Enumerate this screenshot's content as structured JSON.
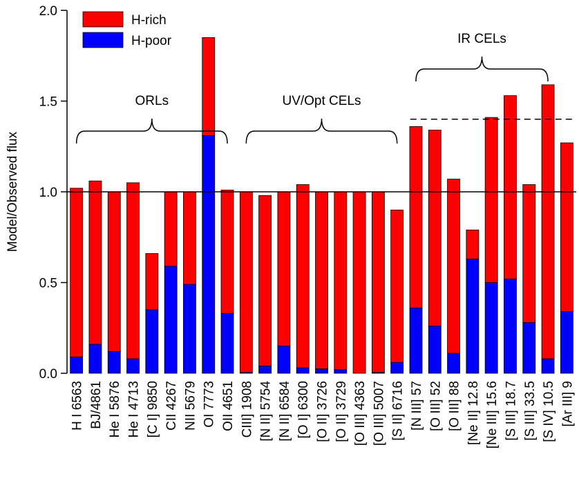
{
  "chart_data": {
    "type": "stacked_bar",
    "y_label": "Model/Observed flux",
    "categories": [
      "H I 6563",
      "BJ/4861",
      "He I 5876",
      "He I 4713",
      "[C I] 9850",
      "CII 4267",
      "NII 5679",
      "OI 7773",
      "OII 4651",
      "CIII] 1908",
      "[N II] 5754",
      "[N II] 6584",
      "[O I] 6300",
      "[O II] 3726",
      "[O II] 3729",
      "[O III] 4363",
      "[O III] 5007",
      "[S II] 6716",
      "[N III] 57",
      "[O III] 52",
      "[O III] 88",
      "[Ne II] 12.8",
      "[Ne III] 15.6",
      "[S III] 18.7",
      "[S III] 33.5",
      "[S IV] 10.5",
      "[Ar III] 9"
    ],
    "series": [
      {
        "name": "H-poor",
        "color": "#0000ff",
        "values": [
          0.09,
          0.16,
          0.12,
          0.08,
          0.35,
          0.59,
          0.49,
          1.31,
          0.33,
          0.005,
          0.04,
          0.15,
          0.03,
          0.025,
          0.02,
          0,
          0.005,
          0.06,
          0.36,
          0.26,
          0.11,
          0.63,
          0.5,
          0.52,
          0.28,
          0.08,
          0.34
        ]
      },
      {
        "name": "H-rich",
        "color": "#ff0000",
        "values": [
          0.93,
          0.9,
          0.88,
          0.97,
          0.31,
          0.41,
          0.51,
          0.54,
          0.68,
          0.995,
          0.94,
          0.85,
          1.01,
          0.975,
          0.98,
          1.0,
          0.995,
          0.84,
          1.0,
          1.08,
          0.96,
          0.16,
          0.91,
          1.01,
          0.76,
          1.51,
          0.93
        ]
      }
    ],
    "ylim": [
      0,
      2.0
    ],
    "yticks": [
      {
        "value": 0,
        "label": "0.0"
      },
      {
        "value": 0.5,
        "label": "0.5"
      },
      {
        "value": 1,
        "label": "1.0"
      },
      {
        "value": 1.5,
        "label": "1.5"
      },
      {
        "value": 2,
        "label": "2.0"
      }
    ],
    "legend": "upper left",
    "reference_lines": [
      {
        "value": 1,
        "style": "solid",
        "from": "H I 6563",
        "to": "[Ar III] 9"
      },
      {
        "value": 1.4,
        "style": "dashed",
        "from": "[N III] 57",
        "to": "[Ar III] 9"
      }
    ],
    "brackets": [
      {
        "label": "ORLs",
        "from": "H I 6563",
        "to": "OII 4651"
      },
      {
        "label": "UV/Opt CELs",
        "from": "CIII] 1908",
        "to": "[S II] 6716"
      },
      {
        "label": "IR CELs",
        "from": "[N III] 57",
        "to": "[S IV] 10.5"
      }
    ]
  }
}
